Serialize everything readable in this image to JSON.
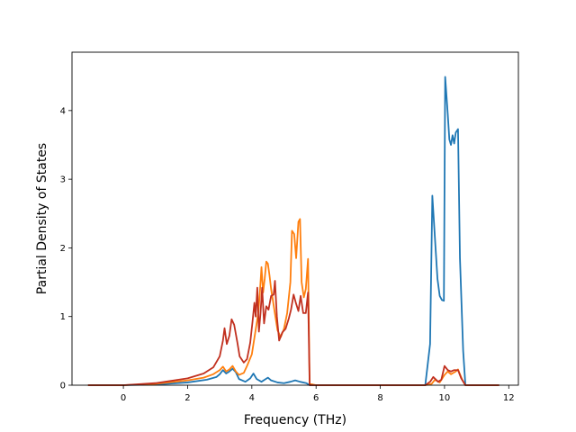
{
  "chart_data": {
    "type": "line",
    "title": "",
    "xlabel": "Frequency (THz)",
    "ylabel": "Partial Density of States",
    "xlim": [
      -1.6,
      12.3
    ],
    "ylim": [
      0,
      4.85
    ],
    "xticks": [
      0,
      2,
      4,
      6,
      8,
      10,
      12
    ],
    "yticks": [
      0,
      1,
      2,
      3,
      4
    ],
    "grid": false,
    "legend": "none",
    "series": [
      {
        "color": "#1f77b4",
        "points": [
          [
            -1.1,
            0
          ],
          [
            0,
            0
          ],
          [
            1.0,
            0.01
          ],
          [
            2.0,
            0.04
          ],
          [
            2.6,
            0.08
          ],
          [
            2.9,
            0.12
          ],
          [
            3.0,
            0.16
          ],
          [
            3.1,
            0.22
          ],
          [
            3.2,
            0.17
          ],
          [
            3.3,
            0.2
          ],
          [
            3.4,
            0.24
          ],
          [
            3.5,
            0.19
          ],
          [
            3.6,
            0.09
          ],
          [
            3.8,
            0.05
          ],
          [
            3.95,
            0.1
          ],
          [
            4.05,
            0.17
          ],
          [
            4.15,
            0.09
          ],
          [
            4.3,
            0.05
          ],
          [
            4.4,
            0.08
          ],
          [
            4.5,
            0.11
          ],
          [
            4.6,
            0.07
          ],
          [
            4.8,
            0.04
          ],
          [
            5.0,
            0.03
          ],
          [
            5.2,
            0.05
          ],
          [
            5.35,
            0.07
          ],
          [
            5.5,
            0.05
          ],
          [
            5.7,
            0.03
          ],
          [
            5.8,
            0.0
          ],
          [
            6.0,
            0
          ],
          [
            9.4,
            0
          ],
          [
            9.55,
            0.6
          ],
          [
            9.62,
            2.76
          ],
          [
            9.72,
            2.0
          ],
          [
            9.78,
            1.55
          ],
          [
            9.85,
            1.3
          ],
          [
            9.92,
            1.24
          ],
          [
            9.98,
            1.23
          ],
          [
            10.02,
            4.49
          ],
          [
            10.1,
            3.95
          ],
          [
            10.15,
            3.58
          ],
          [
            10.2,
            3.5
          ],
          [
            10.25,
            3.64
          ],
          [
            10.3,
            3.52
          ],
          [
            10.35,
            3.68
          ],
          [
            10.42,
            3.73
          ],
          [
            10.48,
            1.85
          ],
          [
            10.58,
            0.5
          ],
          [
            10.65,
            0.0
          ],
          [
            11.7,
            0
          ]
        ]
      },
      {
        "color": "#ff7f0e",
        "points": [
          [
            -1.1,
            0
          ],
          [
            0,
            0.0
          ],
          [
            1.0,
            0.02
          ],
          [
            2.0,
            0.07
          ],
          [
            2.5,
            0.11
          ],
          [
            2.8,
            0.16
          ],
          [
            3.0,
            0.22
          ],
          [
            3.1,
            0.27
          ],
          [
            3.2,
            0.2
          ],
          [
            3.3,
            0.23
          ],
          [
            3.4,
            0.28
          ],
          [
            3.5,
            0.2
          ],
          [
            3.6,
            0.15
          ],
          [
            3.75,
            0.18
          ],
          [
            3.85,
            0.28
          ],
          [
            4.0,
            0.45
          ],
          [
            4.1,
            0.75
          ],
          [
            4.2,
            1.05
          ],
          [
            4.25,
            1.35
          ],
          [
            4.3,
            1.72
          ],
          [
            4.35,
            1.35
          ],
          [
            4.4,
            1.55
          ],
          [
            4.45,
            1.8
          ],
          [
            4.5,
            1.77
          ],
          [
            4.55,
            1.6
          ],
          [
            4.6,
            1.4
          ],
          [
            4.7,
            1.1
          ],
          [
            4.8,
            0.8
          ],
          [
            4.9,
            0.7
          ],
          [
            5.0,
            0.82
          ],
          [
            5.1,
            1.05
          ],
          [
            5.2,
            1.5
          ],
          [
            5.25,
            2.25
          ],
          [
            5.32,
            2.2
          ],
          [
            5.38,
            1.85
          ],
          [
            5.45,
            2.38
          ],
          [
            5.5,
            2.42
          ],
          [
            5.55,
            1.5
          ],
          [
            5.62,
            1.28
          ],
          [
            5.68,
            1.4
          ],
          [
            5.75,
            1.84
          ],
          [
            5.8,
            0.02
          ],
          [
            6.0,
            0
          ],
          [
            9.4,
            0
          ],
          [
            9.6,
            0.02
          ],
          [
            9.7,
            0.08
          ],
          [
            9.85,
            0.04
          ],
          [
            10.0,
            0.15
          ],
          [
            10.1,
            0.2
          ],
          [
            10.2,
            0.16
          ],
          [
            10.35,
            0.2
          ],
          [
            10.42,
            0.23
          ],
          [
            10.55,
            0.08
          ],
          [
            10.65,
            0.0
          ],
          [
            11.7,
            0
          ]
        ]
      },
      {
        "color": "#c1301f",
        "points": [
          [
            -1.1,
            0
          ],
          [
            0,
            0.0
          ],
          [
            1.0,
            0.03
          ],
          [
            2.0,
            0.1
          ],
          [
            2.5,
            0.17
          ],
          [
            2.8,
            0.26
          ],
          [
            3.0,
            0.42
          ],
          [
            3.1,
            0.65
          ],
          [
            3.15,
            0.83
          ],
          [
            3.22,
            0.6
          ],
          [
            3.3,
            0.72
          ],
          [
            3.37,
            0.96
          ],
          [
            3.45,
            0.88
          ],
          [
            3.55,
            0.62
          ],
          [
            3.62,
            0.42
          ],
          [
            3.75,
            0.33
          ],
          [
            3.85,
            0.38
          ],
          [
            3.95,
            0.62
          ],
          [
            4.02,
            0.92
          ],
          [
            4.08,
            1.2
          ],
          [
            4.12,
            1.0
          ],
          [
            4.17,
            1.42
          ],
          [
            4.22,
            0.78
          ],
          [
            4.27,
            1.05
          ],
          [
            4.32,
            1.42
          ],
          [
            4.38,
            0.9
          ],
          [
            4.45,
            1.15
          ],
          [
            4.52,
            1.1
          ],
          [
            4.6,
            1.3
          ],
          [
            4.68,
            1.32
          ],
          [
            4.72,
            1.52
          ],
          [
            4.78,
            1.0
          ],
          [
            4.85,
            0.65
          ],
          [
            4.95,
            0.77
          ],
          [
            5.05,
            0.82
          ],
          [
            5.15,
            0.97
          ],
          [
            5.22,
            1.1
          ],
          [
            5.3,
            1.32
          ],
          [
            5.37,
            1.2
          ],
          [
            5.45,
            1.08
          ],
          [
            5.52,
            1.3
          ],
          [
            5.6,
            1.05
          ],
          [
            5.68,
            1.05
          ],
          [
            5.75,
            1.35
          ],
          [
            5.8,
            0.0
          ],
          [
            6.0,
            0
          ],
          [
            9.4,
            0
          ],
          [
            9.55,
            0.05
          ],
          [
            9.65,
            0.12
          ],
          [
            9.8,
            0.05
          ],
          [
            9.9,
            0.08
          ],
          [
            10.0,
            0.28
          ],
          [
            10.1,
            0.22
          ],
          [
            10.2,
            0.2
          ],
          [
            10.3,
            0.22
          ],
          [
            10.42,
            0.22
          ],
          [
            10.52,
            0.1
          ],
          [
            10.65,
            0.0
          ],
          [
            11.7,
            0
          ]
        ]
      }
    ]
  }
}
